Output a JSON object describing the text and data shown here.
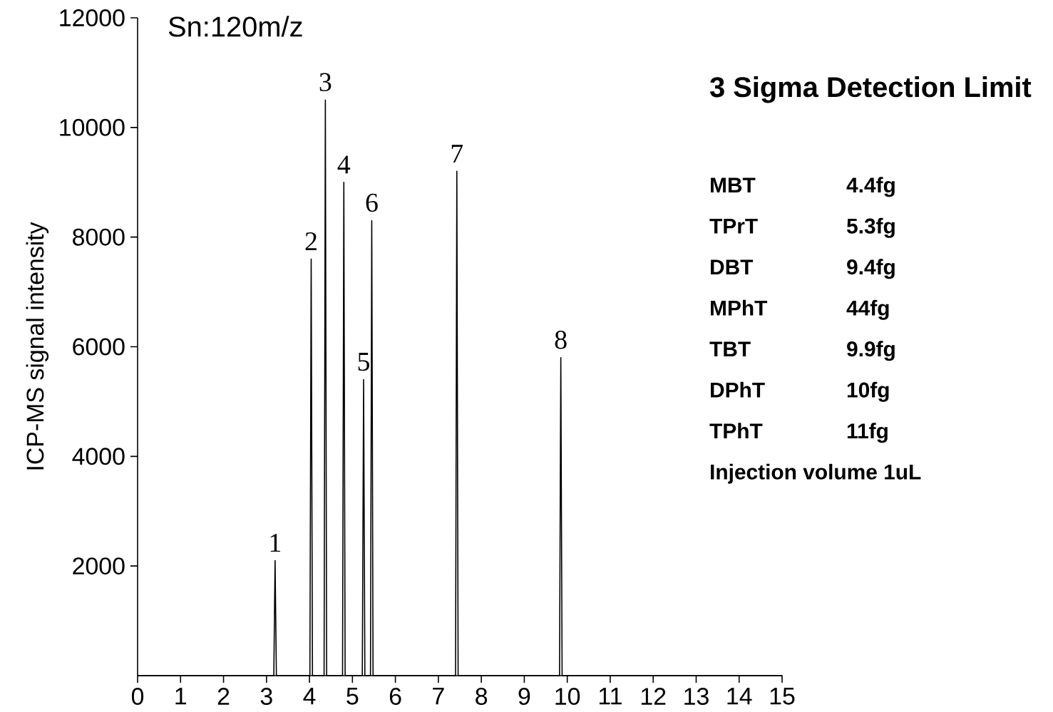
{
  "chart_data": {
    "type": "line",
    "title": "Sn:120m/z",
    "ylabel": "ICP-MS signal intensity",
    "x": [
      0,
      3.17,
      3.2,
      3.23,
      4.01,
      4.04,
      4.07,
      4.34,
      4.37,
      4.4,
      4.77,
      4.8,
      4.83,
      5.23,
      5.26,
      5.29,
      5.42,
      5.45,
      5.48,
      7.4,
      7.43,
      7.46,
      9.82,
      9.85,
      9.88,
      15
    ],
    "values": [
      0,
      0,
      2100,
      0,
      0,
      7600,
      0,
      0,
      10500,
      0,
      0,
      9000,
      0,
      0,
      5400,
      0,
      0,
      8300,
      0,
      0,
      9200,
      0,
      0,
      5800,
      0,
      0
    ],
    "color": "#000000",
    "marker": "none",
    "line_style": "solid",
    "grid": false,
    "xlim": [
      0,
      15
    ],
    "ylim": [
      0,
      12000
    ],
    "xticks": [
      0,
      1,
      2,
      3,
      4,
      5,
      6,
      7,
      8,
      9,
      10,
      11,
      12,
      13,
      14,
      15
    ],
    "yticks": [
      2000,
      4000,
      6000,
      8000,
      10000,
      12000
    ],
    "annotations": [
      {
        "text": "1",
        "x": 3.2,
        "y": 2100
      },
      {
        "text": "2",
        "x": 4.04,
        "y": 7600
      },
      {
        "text": "3",
        "x": 4.37,
        "y": 10500
      },
      {
        "text": "4",
        "x": 4.8,
        "y": 9000
      },
      {
        "text": "5",
        "x": 5.26,
        "y": 5400
      },
      {
        "text": "6",
        "x": 5.45,
        "y": 8300
      },
      {
        "text": "7",
        "x": 7.43,
        "y": 9200
      },
      {
        "text": "8",
        "x": 9.85,
        "y": 5800
      },
      "3 Sigma Detection Limit",
      "MBT",
      "4.4fg",
      "TPrT",
      "5.3fg",
      "DBT",
      "9.4fg",
      "MPhT",
      "44fg",
      "TBT",
      "9.9fg",
      "DPhT",
      "10fg",
      "TPhT",
      "11fg",
      "Injection volume 1uL"
    ]
  }
}
